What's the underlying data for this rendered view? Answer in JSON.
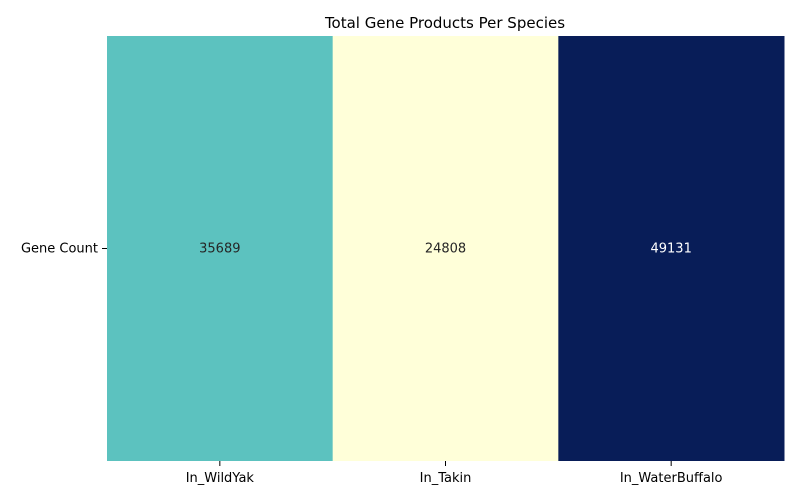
{
  "chart_data": {
    "type": "heatmap",
    "title": "Total Gene Products Per Species",
    "xlabel": "",
    "ylabel": "",
    "rows": [
      "Gene Count"
    ],
    "columns": [
      "In_WildYak",
      "In_Takin",
      "In_WaterBuffalo"
    ],
    "values": [
      [
        35689,
        24808,
        49131
      ]
    ],
    "colormap": "YlGnBu",
    "colorbar": false,
    "cell_colors": [
      "#5cc2bf",
      "#ffffd9",
      "#081d58"
    ],
    "label_colors": [
      "#262626",
      "#262626",
      "#ffffff"
    ],
    "grid": false
  }
}
